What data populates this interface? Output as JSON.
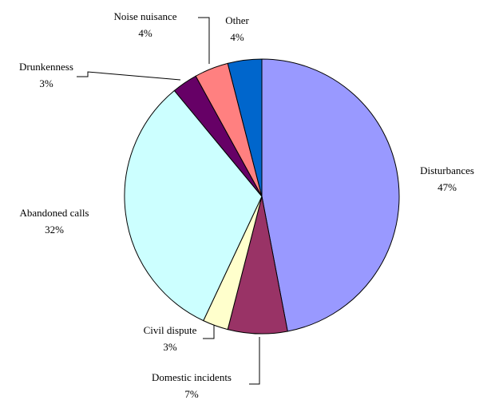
{
  "chart_data": {
    "type": "pie",
    "categories": [
      "Disturbances",
      "Domestic incidents",
      "Civil dispute",
      "Abandoned calls",
      "Drunkenness",
      "Noise nuisance",
      "Other"
    ],
    "values": [
      47,
      7,
      3,
      32,
      3,
      4,
      4
    ],
    "value_labels": [
      "47%",
      "7%",
      "3%",
      "32%",
      "3%",
      "4%",
      "4%"
    ],
    "colors": [
      "#9999ff",
      "#993366",
      "#ffffcc",
      "#ccffff",
      "#660066",
      "#ff8080",
      "#0066cc"
    ]
  }
}
